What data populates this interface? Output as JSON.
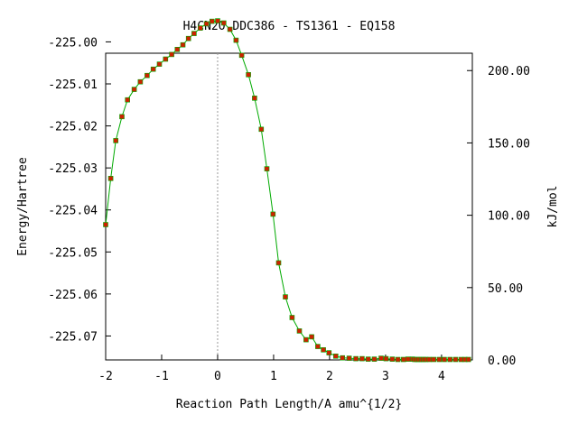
{
  "chart_data": {
    "type": "line",
    "title": "H4CN2O   DDC386 - TS1361 - EQ158",
    "xlabel": "Reaction Path Length/A amu^{1/2}",
    "ylabel": "Energy/Hartree",
    "y2label": "kJ/mol",
    "xlim": [
      -2.0,
      4.55
    ],
    "ylim": [
      -225.0757,
      -225.0027
    ],
    "y2lim": [
      0.0,
      212.0
    ],
    "x_ticks": [
      -2,
      -1,
      0,
      1,
      2,
      3,
      4
    ],
    "x_tick_labels": [
      "-2",
      "-1",
      "0",
      "1",
      "2",
      "3",
      "4"
    ],
    "y_ticks": [
      -225.0,
      -225.01,
      -225.02,
      -225.03,
      -225.04,
      -225.05,
      -225.06,
      -225.07
    ],
    "y_tick_labels": [
      "-225.00",
      "-225.01",
      "-225.02",
      "-225.03",
      "-225.04",
      "-225.05",
      "-225.06",
      "-225.07"
    ],
    "y2_ticks": [
      0,
      50,
      100,
      150,
      200
    ],
    "y2_tick_labels": [
      "0.00",
      "50.00",
      "100.00",
      "150.00",
      "200.00"
    ],
    "ts_marker_x": 0.0,
    "colors": {
      "line": "#00aa00",
      "points": "#cc2200",
      "ts_line": "#999999"
    },
    "series": [
      {
        "values": [
          [
            -2.0,
            -225.0435
          ],
          [
            -1.91,
            -225.0325
          ],
          [
            -1.82,
            -225.0235
          ],
          [
            -1.71,
            -225.0178
          ],
          [
            -1.61,
            -225.0138
          ],
          [
            -1.49,
            -225.0113
          ],
          [
            -1.38,
            -225.0095
          ],
          [
            -1.26,
            -225.008
          ],
          [
            -1.15,
            -225.0065
          ],
          [
            -1.04,
            -225.0053
          ],
          [
            -0.93,
            -225.0041
          ],
          [
            -0.82,
            -225.003
          ],
          [
            -0.72,
            -225.0018
          ],
          [
            -0.62,
            -225.0007
          ],
          [
            -0.52,
            -224.9992
          ],
          [
            -0.42,
            -224.998
          ],
          [
            -0.31,
            -224.9967
          ],
          [
            -0.2,
            -224.9957
          ],
          [
            -0.1,
            -224.9951
          ],
          [
            0.0,
            -224.995
          ],
          [
            0.11,
            -224.9955
          ],
          [
            0.22,
            -224.997
          ],
          [
            0.33,
            -224.9996
          ],
          [
            0.43,
            -225.0032
          ],
          [
            0.55,
            -225.0078
          ],
          [
            0.66,
            -225.0134
          ],
          [
            0.78,
            -225.0208
          ],
          [
            0.88,
            -225.0302
          ],
          [
            0.99,
            -225.041
          ],
          [
            1.09,
            -225.0526
          ],
          [
            1.21,
            -225.0607
          ],
          [
            1.33,
            -225.0656
          ],
          [
            1.46,
            -225.0688
          ],
          [
            1.58,
            -225.0709
          ],
          [
            1.68,
            -225.0702
          ],
          [
            1.79,
            -225.0725
          ],
          [
            1.89,
            -225.0733
          ],
          [
            1.99,
            -225.074
          ],
          [
            2.11,
            -225.0748
          ],
          [
            2.23,
            -225.0752
          ],
          [
            2.35,
            -225.0753
          ],
          [
            2.47,
            -225.0754
          ],
          [
            2.58,
            -225.0754
          ],
          [
            2.69,
            -225.0755
          ],
          [
            2.8,
            -225.0755
          ],
          [
            2.92,
            -225.0753
          ],
          [
            3.01,
            -225.0754
          ],
          [
            3.12,
            -225.0755
          ],
          [
            3.22,
            -225.0756
          ],
          [
            3.32,
            -225.0756
          ],
          [
            3.4,
            -225.0755
          ],
          [
            3.48,
            -225.0755
          ],
          [
            3.52,
            -225.0756
          ],
          [
            3.56,
            -225.0756
          ],
          [
            3.6,
            -225.0756
          ],
          [
            3.64,
            -225.0756
          ],
          [
            3.68,
            -225.0756
          ],
          [
            3.72,
            -225.0756
          ],
          [
            3.78,
            -225.0756
          ],
          [
            3.86,
            -225.0756
          ],
          [
            3.96,
            -225.0756
          ],
          [
            4.05,
            -225.0756
          ],
          [
            4.15,
            -225.0756
          ],
          [
            4.25,
            -225.0756
          ],
          [
            4.35,
            -225.0756
          ],
          [
            4.42,
            -225.0756
          ],
          [
            4.48,
            -225.0756
          ]
        ]
      }
    ]
  }
}
